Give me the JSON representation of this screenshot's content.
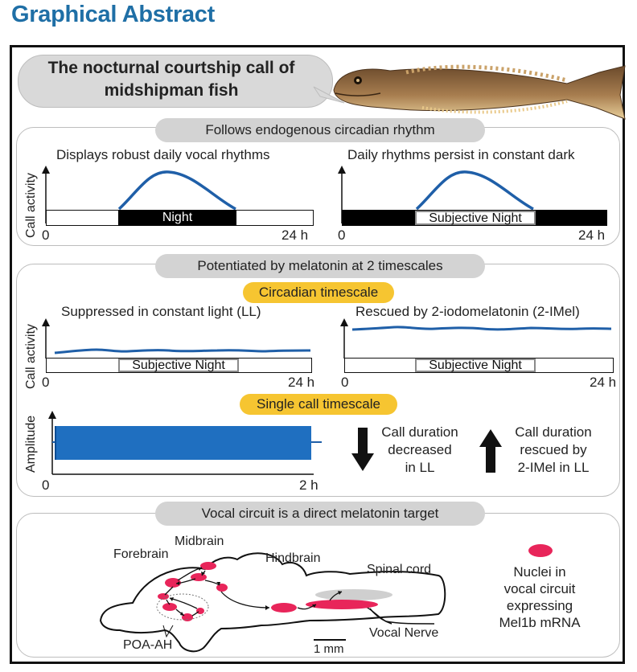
{
  "header": {
    "title": "Graphical Abstract"
  },
  "bubble": {
    "line1": "The nocturnal courtship call of",
    "line2": "midshipman fish"
  },
  "panel1": {
    "pill": "Follows endogenous circadian rhythm",
    "left": {
      "title": "Displays robust daily vocal rhythms",
      "bar_label": "Night",
      "x_start": "0",
      "x_end": "24 h"
    },
    "right": {
      "title": "Daily rhythms persist in constant dark",
      "bar_label": "Subjective Night",
      "x_start": "0",
      "x_end": "24 h"
    },
    "ylabel": "Call activity"
  },
  "panel2": {
    "pill": "Potentiated by melatonin at 2 timescales",
    "circadian_pill": "Circadian timescale",
    "left": {
      "title": "Suppressed in constant light (LL)",
      "bar_label": "Subjective Night",
      "x_start": "0",
      "x_end": "24 h"
    },
    "right": {
      "title": "Rescued by 2-iodomelatonin (2-IMel)",
      "bar_label": "Subjective Night",
      "x_start": "0",
      "x_end": "24 h"
    },
    "ylabel": "Call activity",
    "single_pill": "Single call timescale",
    "amp_ylabel": "Amplitude",
    "amp_x_start": "0",
    "amp_x_end": "2 h",
    "down_text": [
      "Call duration",
      "decreased",
      "in LL"
    ],
    "up_text": [
      "Call duration",
      "rescued by",
      "2-IMel in LL"
    ]
  },
  "panel3": {
    "pill": "Vocal circuit is a direct melatonin target",
    "labels": {
      "forebrain": "Forebrain",
      "midbrain": "Midbrain",
      "hindbrain": "Hindbrain",
      "spinal": "Spinal cord",
      "poa": "POA-AH",
      "nerve": "Vocal Nerve",
      "scale": "1 mm"
    },
    "legend": [
      "Nuclei in",
      "vocal circuit",
      "expressing",
      "Mel1b mRNA"
    ]
  },
  "colors": {
    "title_blue": "#1f6fa6",
    "curve_blue": "#1f5fa8",
    "nuclei_pink": "#e8255a",
    "yellow": "#f6c531",
    "pill_gray": "#d3d3d3"
  }
}
